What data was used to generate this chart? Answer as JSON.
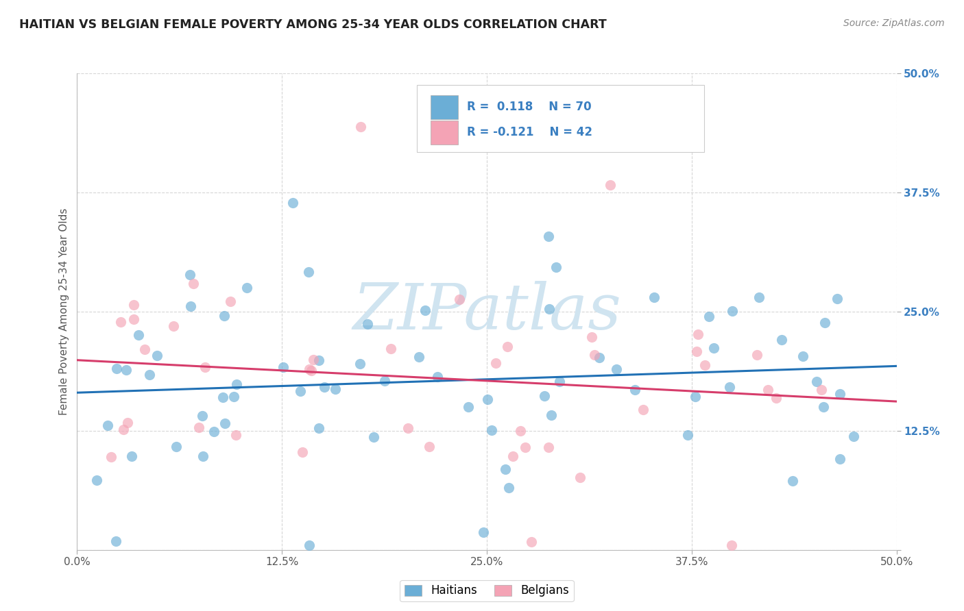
{
  "title": "HAITIAN VS BELGIAN FEMALE POVERTY AMONG 25-34 YEAR OLDS CORRELATION CHART",
  "source": "Source: ZipAtlas.com",
  "ylabel": "Female Poverty Among 25-34 Year Olds",
  "xlim": [
    0.0,
    0.5
  ],
  "ylim": [
    0.0,
    0.5
  ],
  "xticks": [
    0.0,
    0.125,
    0.25,
    0.375,
    0.5
  ],
  "yticks": [
    0.0,
    0.125,
    0.25,
    0.375,
    0.5
  ],
  "haitian_color": "#6baed6",
  "haitian_edge_color": "#4292c6",
  "belgian_color": "#f4a3b5",
  "belgian_edge_color": "#e07a90",
  "haitian_line_color": "#2171b5",
  "belgian_line_color": "#d63d6b",
  "watermark_color": "#d0e4f0",
  "legend_text_color": "#3a7fc1",
  "R_haitian": 0.118,
  "N_haitian": 70,
  "R_belgian": -0.121,
  "N_belgian": 42
}
